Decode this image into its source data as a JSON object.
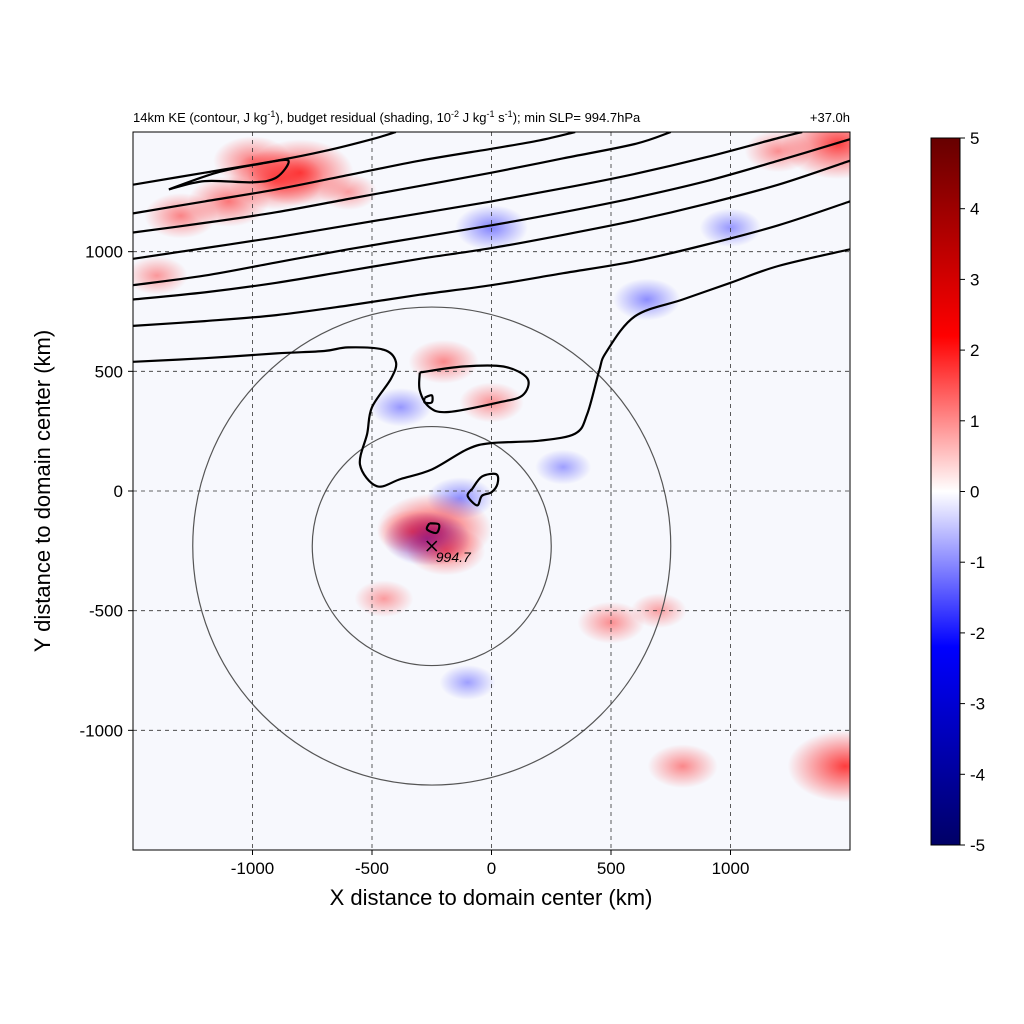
{
  "chart_data": {
    "type": "heatmap",
    "title_parts": {
      "a": "14km KE (contour, J kg",
      "a_sup": "-1",
      "b": "), budget residual (shading, 10",
      "b_sup": "-2",
      "c": " J kg",
      "c_sup": "-1",
      "d": " s",
      "d_sup": "-1",
      "e": "); min SLP= 994.7hPa"
    },
    "time_label": "+37.0h",
    "xlabel": "X distance to domain center (km)",
    "ylabel": "Y distance to domain center (km)",
    "xlim": [
      -1500,
      1500
    ],
    "ylim": [
      -1500,
      1500
    ],
    "xticks": [
      -1000,
      -500,
      0,
      500,
      1000
    ],
    "yticks": [
      -1000,
      -500,
      0,
      500,
      1000
    ],
    "grid": "dashed",
    "colorbar": {
      "range": [
        -5,
        5
      ],
      "ticks": [
        5,
        4,
        3,
        2,
        1,
        0,
        -1,
        -2,
        -3,
        -4,
        -5
      ],
      "colormap": [
        "#000066",
        "#0000ff",
        "#ffffff",
        "#ff0000",
        "#660000"
      ]
    },
    "storm_center": {
      "x": -250,
      "y": -230,
      "label": "994.7"
    },
    "range_rings": [
      {
        "center_x": -250,
        "center_y": -230,
        "radius": 500
      },
      {
        "center_x": -250,
        "center_y": -230,
        "radius": 1000
      }
    ],
    "ke_contours": [
      [
        [
          -1500,
          540
        ],
        [
          -1200,
          555
        ],
        [
          -900,
          575
        ],
        [
          -700,
          585
        ],
        [
          -600,
          600
        ],
        [
          -450,
          590
        ],
        [
          -400,
          540
        ],
        [
          -420,
          470
        ],
        [
          -500,
          350
        ],
        [
          -520,
          240
        ],
        [
          -550,
          110
        ],
        [
          -480,
          20
        ],
        [
          -380,
          50
        ],
        [
          -250,
          90
        ],
        [
          -100,
          175
        ],
        [
          0,
          200
        ],
        [
          200,
          210
        ],
        [
          350,
          240
        ],
        [
          400,
          320
        ],
        [
          450,
          500
        ],
        [
          480,
          580
        ],
        [
          600,
          730
        ],
        [
          800,
          800
        ],
        [
          1000,
          870
        ],
        [
          1200,
          940
        ],
        [
          1500,
          1010
        ]
      ],
      [
        [
          -1500,
          690
        ],
        [
          -1200,
          710
        ],
        [
          -900,
          735
        ],
        [
          -600,
          775
        ],
        [
          -300,
          820
        ],
        [
          0,
          860
        ],
        [
          300,
          910
        ],
        [
          600,
          960
        ],
        [
          900,
          1030
        ],
        [
          1200,
          1110
        ],
        [
          1500,
          1210
        ]
      ],
      [
        [
          -1500,
          800
        ],
        [
          -1200,
          830
        ],
        [
          -900,
          870
        ],
        [
          -600,
          920
        ],
        [
          -300,
          970
        ],
        [
          0,
          1015
        ],
        [
          300,
          1070
        ],
        [
          600,
          1130
        ],
        [
          900,
          1200
        ],
        [
          1200,
          1280
        ],
        [
          1500,
          1380
        ]
      ],
      [
        [
          -1500,
          860
        ],
        [
          -1200,
          900
        ],
        [
          -900,
          955
        ],
        [
          -600,
          1010
        ],
        [
          -300,
          1060
        ],
        [
          0,
          1110
        ],
        [
          300,
          1165
        ],
        [
          600,
          1225
        ],
        [
          900,
          1295
        ],
        [
          1200,
          1380
        ],
        [
          1500,
          1470
        ]
      ],
      [
        [
          -1500,
          970
        ],
        [
          -1200,
          1015
        ],
        [
          -900,
          1060
        ],
        [
          -600,
          1110
        ],
        [
          -300,
          1160
        ],
        [
          0,
          1210
        ],
        [
          300,
          1265
        ],
        [
          600,
          1325
        ],
        [
          900,
          1395
        ],
        [
          1200,
          1475
        ],
        [
          1300,
          1500
        ]
      ],
      [
        [
          -1500,
          1080
        ],
        [
          -1200,
          1120
        ],
        [
          -900,
          1165
        ],
        [
          -600,
          1220
        ],
        [
          -300,
          1275
        ],
        [
          0,
          1330
        ],
        [
          300,
          1390
        ],
        [
          600,
          1450
        ],
        [
          750,
          1500
        ]
      ],
      [
        [
          -1500,
          1160
        ],
        [
          -1200,
          1210
        ],
        [
          -900,
          1260
        ],
        [
          -600,
          1320
        ],
        [
          -300,
          1380
        ],
        [
          0,
          1430
        ],
        [
          200,
          1465
        ],
        [
          350,
          1500
        ]
      ],
      [
        [
          -1500,
          1280
        ],
        [
          -1200,
          1330
        ],
        [
          -900,
          1380
        ],
        [
          -700,
          1420
        ],
        [
          -500,
          1470
        ],
        [
          -400,
          1500
        ]
      ],
      [
        [
          -1350,
          1260
        ],
        [
          -1200,
          1295
        ],
        [
          -1000,
          1290
        ],
        [
          -900,
          1310
        ],
        [
          -850,
          1380
        ],
        [
          -950,
          1370
        ],
        [
          -1150,
          1330
        ],
        [
          -1350,
          1260
        ]
      ],
      [
        [
          -300,
          495
        ],
        [
          -120,
          520
        ],
        [
          50,
          520
        ],
        [
          150,
          470
        ],
        [
          130,
          400
        ],
        [
          30,
          370
        ],
        [
          -180,
          330
        ],
        [
          -260,
          350
        ],
        [
          -300,
          420
        ],
        [
          -300,
          495
        ]
      ],
      [
        [
          -80,
          10
        ],
        [
          -40,
          60
        ],
        [
          20,
          70
        ],
        [
          25,
          30
        ],
        [
          0,
          -5
        ],
        [
          -40,
          -20
        ],
        [
          -60,
          -60
        ],
        [
          -100,
          -20
        ],
        [
          -80,
          10
        ]
      ],
      [
        [
          -260,
          -135
        ],
        [
          -220,
          -140
        ],
        [
          -230,
          -175
        ],
        [
          -270,
          -160
        ],
        [
          -260,
          -135
        ]
      ],
      [
        [
          -280,
          390
        ],
        [
          -250,
          400
        ],
        [
          -250,
          370
        ],
        [
          -280,
          370
        ],
        [
          -280,
          390
        ]
      ]
    ],
    "residual_features": [
      {
        "x": -900,
        "y": 1300,
        "value": 1.8
      },
      {
        "x": -800,
        "y": 1330,
        "value": 2.2
      },
      {
        "x": -1100,
        "y": 1210,
        "value": 1.3
      },
      {
        "x": -1300,
        "y": 1150,
        "value": 1.0
      },
      {
        "x": -1000,
        "y": 1380,
        "value": 1.2
      },
      {
        "x": -1400,
        "y": 900,
        "value": 0.6
      },
      {
        "x": -600,
        "y": 1250,
        "value": 0.5
      },
      {
        "x": 0,
        "y": 1100,
        "value": -1.0
      },
      {
        "x": 650,
        "y": 800,
        "value": -0.8
      },
      {
        "x": 1000,
        "y": 1100,
        "value": -0.6
      },
      {
        "x": 1200,
        "y": 1420,
        "value": 0.8
      },
      {
        "x": 1450,
        "y": 1450,
        "value": 2.4
      },
      {
        "x": -200,
        "y": 540,
        "value": 0.9
      },
      {
        "x": 0,
        "y": 370,
        "value": 0.7
      },
      {
        "x": -380,
        "y": 350,
        "value": -0.6
      },
      {
        "x": -130,
        "y": -30,
        "value": -0.8
      },
      {
        "x": -240,
        "y": -160,
        "value": 2.5
      },
      {
        "x": -270,
        "y": -200,
        "value": -1.5
      },
      {
        "x": -190,
        "y": -250,
        "value": 1.2
      },
      {
        "x": -330,
        "y": -170,
        "value": 0.9
      },
      {
        "x": -450,
        "y": -450,
        "value": 0.5
      },
      {
        "x": 500,
        "y": -550,
        "value": 0.8
      },
      {
        "x": 700,
        "y": -500,
        "value": 0.4
      },
      {
        "x": 800,
        "y": -1150,
        "value": 0.9
      },
      {
        "x": 1480,
        "y": -1150,
        "value": 2.6
      },
      {
        "x": -100,
        "y": -800,
        "value": -0.4
      },
      {
        "x": 300,
        "y": 100,
        "value": -0.4
      }
    ]
  }
}
